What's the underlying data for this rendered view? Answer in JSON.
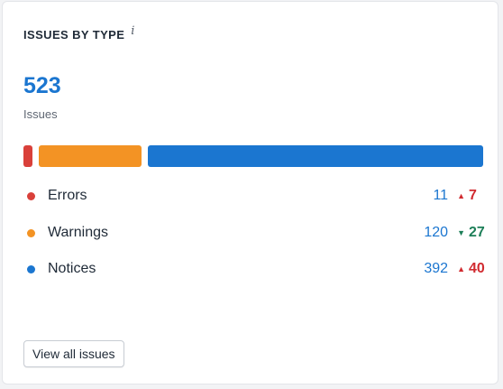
{
  "widget": {
    "title": "ISSUES BY TYPE",
    "info_icon": "i",
    "total": "523",
    "total_label": "Issues",
    "view_all_label": "View all issues"
  },
  "issue_types": [
    {
      "label": "Errors",
      "count": "11",
      "delta": "7",
      "direction": "up",
      "arrow": "▲",
      "color": "#d9403a",
      "count_value": 11
    },
    {
      "label": "Warnings",
      "count": "120",
      "delta": "27",
      "direction": "down",
      "arrow": "▼",
      "color": "#f39324",
      "count_value": 120
    },
    {
      "label": "Notices",
      "count": "392",
      "delta": "40",
      "direction": "up",
      "arrow": "▲",
      "color": "#1b76d0",
      "count_value": 392
    }
  ],
  "colors": {
    "accent": "#1b76d0",
    "delta_up": "#d12b30",
    "delta_down": "#1d7f58"
  }
}
